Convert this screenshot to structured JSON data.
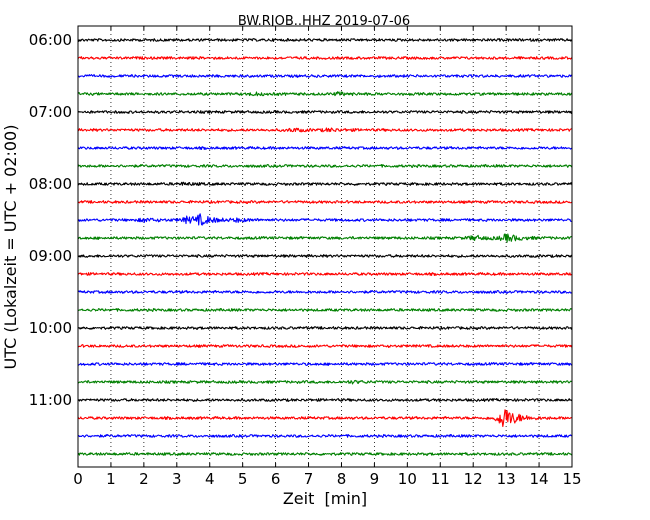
{
  "chart_data": {
    "type": "line",
    "title": "BW.RJOB..HHZ 2019-07-06",
    "xlabel": "Zeit  [min]",
    "ylabel": "UTC (Lokalzeit = UTC + 02:00)",
    "xlim": [
      0,
      15
    ],
    "x_ticks": [
      0,
      1,
      2,
      3,
      4,
      5,
      6,
      7,
      8,
      9,
      10,
      11,
      12,
      13,
      14,
      15
    ],
    "grid": "vertical dotted",
    "colors": [
      "#000000",
      "#ff0000",
      "#0000ff",
      "#008000"
    ],
    "y_tick_labels": [
      "06:00",
      "07:00",
      "08:00",
      "09:00",
      "10:00",
      "11:00"
    ],
    "trace_interval_minutes": 15,
    "traces": [
      {
        "start": "06:00",
        "color": "#000000"
      },
      {
        "start": "06:15",
        "color": "#ff0000"
      },
      {
        "start": "06:30",
        "color": "#0000ff"
      },
      {
        "start": "06:45",
        "color": "#008000",
        "events": [
          {
            "t": 5.3,
            "amp": 0.18
          },
          {
            "t": 7.9,
            "amp": 0.2
          }
        ]
      },
      {
        "start": "07:00",
        "color": "#000000"
      },
      {
        "start": "07:15",
        "color": "#ff0000",
        "events": [
          {
            "t": 6.5,
            "amp": 0.22
          },
          {
            "t": 7.6,
            "amp": 0.2
          }
        ]
      },
      {
        "start": "07:30",
        "color": "#0000ff"
      },
      {
        "start": "07:45",
        "color": "#008000"
      },
      {
        "start": "08:00",
        "color": "#000000",
        "events": [
          {
            "t": 3.2,
            "amp": 0.15
          }
        ]
      },
      {
        "start": "08:15",
        "color": "#ff0000"
      },
      {
        "start": "08:30",
        "color": "#0000ff",
        "events": [
          {
            "t": 2.0,
            "amp": 0.25
          },
          {
            "t": 3.3,
            "amp": 0.45
          },
          {
            "t": 3.7,
            "amp": 0.7
          },
          {
            "t": 4.8,
            "amp": 0.2
          }
        ]
      },
      {
        "start": "08:45",
        "color": "#008000",
        "events": [
          {
            "t": 12.0,
            "amp": 0.35
          },
          {
            "t": 13.0,
            "amp": 0.6
          }
        ]
      },
      {
        "start": "09:00",
        "color": "#000000"
      },
      {
        "start": "09:15",
        "color": "#ff0000"
      },
      {
        "start": "09:30",
        "color": "#0000ff"
      },
      {
        "start": "09:45",
        "color": "#008000"
      },
      {
        "start": "10:00",
        "color": "#000000"
      },
      {
        "start": "10:15",
        "color": "#ff0000"
      },
      {
        "start": "10:30",
        "color": "#0000ff"
      },
      {
        "start": "10:45",
        "color": "#008000",
        "events": [
          {
            "t": 8.3,
            "amp": 0.15
          }
        ]
      },
      {
        "start": "11:00",
        "color": "#000000"
      },
      {
        "start": "11:15",
        "color": "#ff0000",
        "events": [
          {
            "t": 12.9,
            "amp": 1.9
          }
        ]
      },
      {
        "start": "11:30",
        "color": "#0000ff"
      },
      {
        "start": "11:45",
        "color": "#008000"
      }
    ]
  }
}
